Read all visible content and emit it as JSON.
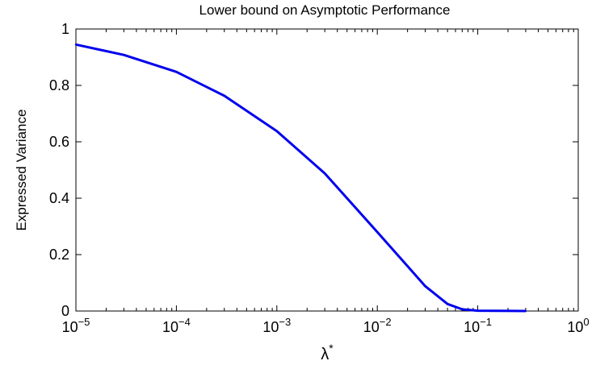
{
  "chart_data": {
    "type": "line",
    "title": "Lower bound on Asymptotic Performance",
    "xlabel": "λ",
    "xlabel_superscript": "*",
    "ylabel": "Expressed Variance",
    "xscale": "log",
    "xlim": [
      1e-05,
      1
    ],
    "ylim": [
      0,
      1
    ],
    "grid": false,
    "x_ticks": [
      {
        "value": 1e-05,
        "base": "10",
        "exp": "−5"
      },
      {
        "value": 0.0001,
        "base": "10",
        "exp": "−4"
      },
      {
        "value": 0.001,
        "base": "10",
        "exp": "−3"
      },
      {
        "value": 0.01,
        "base": "10",
        "exp": "−2"
      },
      {
        "value": 0.1,
        "base": "10",
        "exp": "−1"
      },
      {
        "value": 1,
        "base": "10",
        "exp": "0"
      }
    ],
    "y_ticks": [
      {
        "value": 0,
        "label": "0"
      },
      {
        "value": 0.2,
        "label": "0.2"
      },
      {
        "value": 0.4,
        "label": "0.4"
      },
      {
        "value": 0.6,
        "label": "0.6"
      },
      {
        "value": 0.8,
        "label": "0.8"
      },
      {
        "value": 1,
        "label": "1"
      }
    ],
    "series": [
      {
        "color": "#0000ee",
        "x": [
          1e-05,
          3e-05,
          0.0001,
          0.0003,
          0.001,
          0.003,
          0.01,
          0.03,
          0.05,
          0.07,
          0.1,
          0.3
        ],
        "y": [
          0.945,
          0.908,
          0.848,
          0.763,
          0.638,
          0.488,
          0.28,
          0.088,
          0.025,
          0.006,
          0.001,
          0.0
        ]
      }
    ]
  }
}
